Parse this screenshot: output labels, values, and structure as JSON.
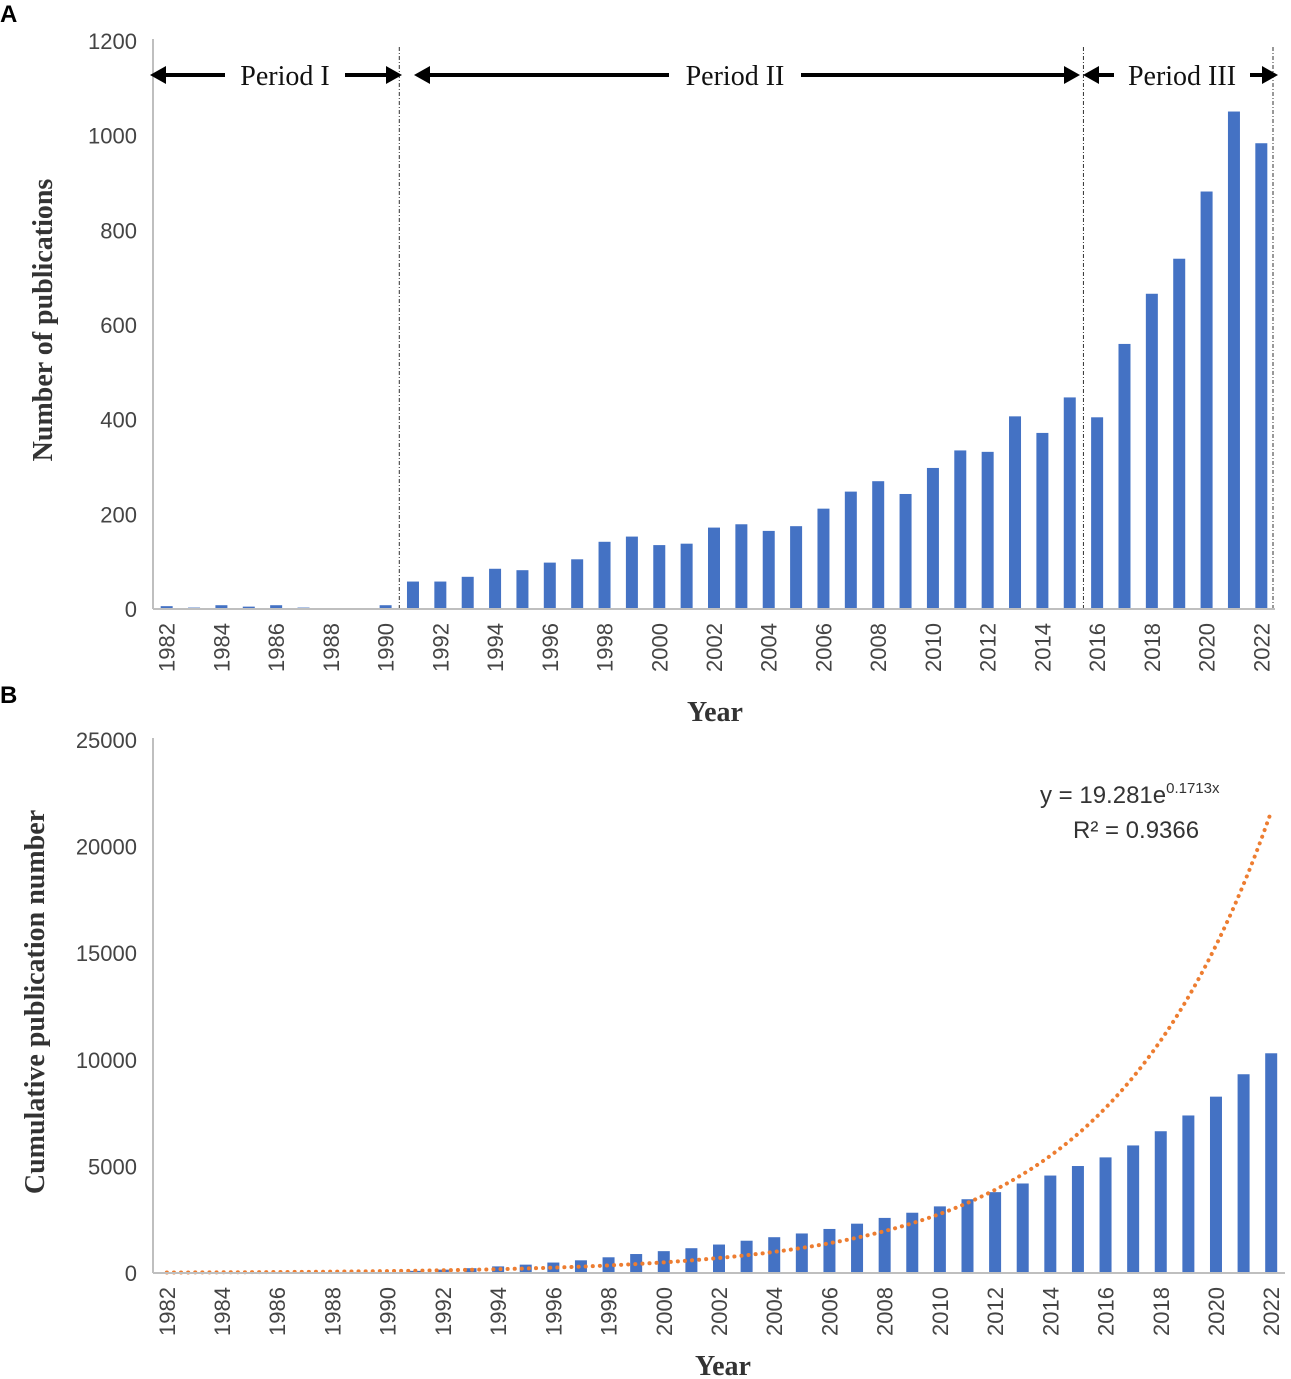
{
  "colors": {
    "bar": "#4472C4",
    "trend": "#ED7D31",
    "axis": "#BFBFBF",
    "text": "#444444"
  },
  "chart_data": [
    {
      "panel": "A",
      "type": "bar",
      "title": "",
      "xlabel": "Year",
      "ylabel": "Number of publications",
      "ylim": [
        0,
        1200
      ],
      "yticks": [
        "0",
        "200",
        "400",
        "600",
        "800",
        "1000",
        "1200"
      ],
      "categories": [
        "1982",
        "1983",
        "1984",
        "1985",
        "1986",
        "1987",
        "1988",
        "1989",
        "1990",
        "1991",
        "1992",
        "1993",
        "1994",
        "1995",
        "1996",
        "1997",
        "1998",
        "1999",
        "2000",
        "2001",
        "2002",
        "2003",
        "2004",
        "2005",
        "2006",
        "2007",
        "2008",
        "2009",
        "2010",
        "2011",
        "2012",
        "2013",
        "2014",
        "2015",
        "2016",
        "2017",
        "2018",
        "2019",
        "2020",
        "2021",
        "2022"
      ],
      "tick_labels": [
        "1982",
        "1984",
        "1986",
        "1988",
        "1990",
        "1992",
        "1994",
        "1996",
        "1998",
        "2000",
        "2002",
        "2004",
        "2006",
        "2008",
        "2010",
        "2012",
        "2014",
        "2016",
        "2018",
        "2020",
        "2022"
      ],
      "values": [
        6,
        3,
        8,
        5,
        8,
        3,
        0,
        0,
        8,
        58,
        58,
        68,
        85,
        82,
        98,
        105,
        142,
        153,
        135,
        138,
        172,
        179,
        165,
        175,
        212,
        248,
        270,
        243,
        298,
        335,
        332,
        407,
        372,
        447,
        405,
        560,
        666,
        740,
        882,
        1051,
        984
      ],
      "periods": [
        {
          "label": "Period I",
          "start": "1982",
          "end": "1990"
        },
        {
          "label": "Period II",
          "start": "1991",
          "end": "2015"
        },
        {
          "label": "Period III",
          "start": "2016",
          "end": "2022"
        }
      ]
    },
    {
      "panel": "B",
      "type": "bar",
      "title": "",
      "xlabel": "Year",
      "ylabel": "Cumulative publication number",
      "ylim": [
        0,
        25000
      ],
      "yticks": [
        "0",
        "5000",
        "10000",
        "15000",
        "20000",
        "25000"
      ],
      "categories": [
        "1982",
        "1983",
        "1984",
        "1985",
        "1986",
        "1987",
        "1988",
        "1989",
        "1990",
        "1991",
        "1992",
        "1993",
        "1994",
        "1995",
        "1996",
        "1997",
        "1998",
        "1999",
        "2000",
        "2001",
        "2002",
        "2003",
        "2004",
        "2005",
        "2006",
        "2007",
        "2008",
        "2009",
        "2010",
        "2011",
        "2012",
        "2013",
        "2014",
        "2015",
        "2016",
        "2017",
        "2018",
        "2019",
        "2020",
        "2021",
        "2022"
      ],
      "tick_labels": [
        "1982",
        "1984",
        "1986",
        "1988",
        "1990",
        "1992",
        "1994",
        "1996",
        "1998",
        "2000",
        "2002",
        "2004",
        "2006",
        "2008",
        "2010",
        "2012",
        "2014",
        "2016",
        "2018",
        "2020",
        "2022"
      ],
      "values": [
        6,
        9,
        17,
        22,
        30,
        33,
        33,
        33,
        41,
        99,
        157,
        225,
        310,
        392,
        490,
        595,
        737,
        890,
        1025,
        1163,
        1335,
        1514,
        1679,
        1854,
        2066,
        2314,
        2584,
        2827,
        3125,
        3460,
        3792,
        4199,
        4571,
        5018,
        5423,
        5983,
        6649,
        7389,
        8271,
        9322,
        10306
      ],
      "trendline": {
        "type": "exponential",
        "a": 19.281,
        "b": 0.1713,
        "x_index_start": 1,
        "equation_prefix": "y = 19.281e",
        "equation_exponent": "0.1713x",
        "r_squared_label": "R² = 0.9366"
      }
    }
  ],
  "panel_labels": {
    "a": "A",
    "b": "B"
  }
}
